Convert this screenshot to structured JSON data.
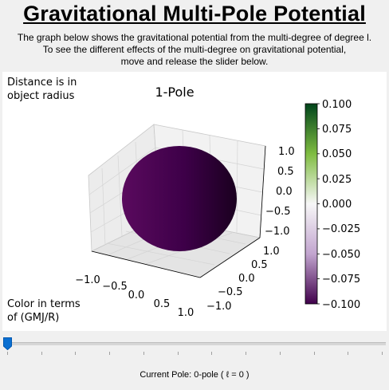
{
  "header": {
    "title": "Gravitational Multi-Pole Potential",
    "desc_line1": "The graph below shows the gravitational potential from the multi-degree of degree l.",
    "desc_line2": "To see the different effects of the multi-degree on gravitational potential,",
    "desc_line3": "move and release the slider below."
  },
  "plot": {
    "title": "1-Pole",
    "note_distance_line1": "Distance is in",
    "note_distance_line2": "object radius",
    "note_color_line1": "Color in terms",
    "note_color_line2": "of (GMJ/R)",
    "x_ticks": [
      "−1.0",
      "−0.5",
      "0.0",
      "0.5",
      "1.0"
    ],
    "y_ticks": [
      "1.0",
      "0.5",
      "0.0",
      "−0.5",
      "−1.0"
    ],
    "z_ticks": [
      "1.0",
      "0.5",
      "0.0",
      "−0.5",
      "−1.0"
    ],
    "colorbar_ticks": [
      "0.100",
      "0.075",
      "0.050",
      "0.025",
      "0.000",
      "−0.025",
      "−0.050",
      "−0.075",
      "−0.100"
    ],
    "colorbar_colors": {
      "top": "#00441b",
      "mid_upper": "#7fbc41",
      "mid": "#f7f7f7",
      "mid_lower": "#c2a5cf",
      "bottom": "#40004b"
    },
    "sphere_color": "#40004b"
  },
  "chart_data": {
    "type": "surface",
    "title": "1-Pole",
    "xlim": [
      -1.0,
      1.0
    ],
    "ylim": [
      -1.0,
      1.0
    ],
    "zlim": [
      -1.0,
      1.0
    ],
    "colorbar_range": [
      -0.1,
      0.1
    ],
    "colormap": "PRGn"
  },
  "slider": {
    "value": 0,
    "min": 0,
    "max": 11,
    "tick_count": 12
  },
  "status": {
    "text": "Current Pole: 0-pole ( ℓ = 0 )"
  }
}
